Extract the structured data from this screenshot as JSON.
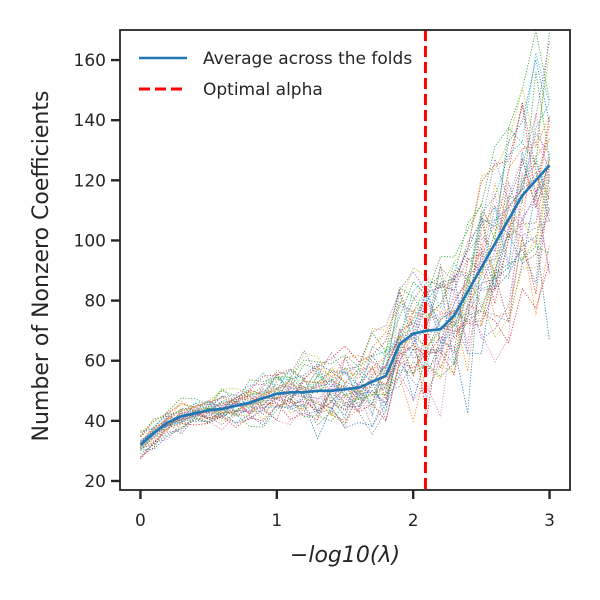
{
  "chart_data": {
    "type": "line",
    "xlabel": "−log10(λ)",
    "ylabel": "Number of Nonzero Coefficients",
    "xlim": [
      -0.15,
      3.15
    ],
    "ylim": [
      17,
      170
    ],
    "x_ticks": [
      0,
      1,
      2,
      3
    ],
    "y_ticks": [
      20,
      40,
      60,
      80,
      100,
      120,
      140,
      160
    ],
    "grid": false,
    "legend_position": "top-left",
    "x": [
      0.0,
      0.1,
      0.2,
      0.3,
      0.4,
      0.5,
      0.6,
      0.7,
      0.8,
      0.9,
      1.0,
      1.1,
      1.2,
      1.3,
      1.4,
      1.5,
      1.6,
      1.7,
      1.8,
      1.9,
      2.0,
      2.1,
      2.2,
      2.3,
      2.4,
      2.5,
      2.6,
      2.7,
      2.8,
      2.9,
      3.0
    ],
    "series": [
      {
        "name": "Average across the folds",
        "color": "#1f77b4",
        "style": "solid",
        "values": [
          32,
          36,
          39.5,
          41.5,
          42.5,
          43.5,
          44,
          45,
          46,
          47.5,
          49,
          49.5,
          49.5,
          50,
          50,
          50.5,
          51,
          53,
          55,
          65.5,
          69,
          70,
          70.5,
          75,
          83,
          91,
          99,
          107,
          115,
          120,
          125
        ]
      }
    ],
    "fold_lines_count": 40,
    "fold_colors": [
      "#1f77b4",
      "#ff7f0e",
      "#2ca02c",
      "#d62728",
      "#9467bd",
      "#8c564b",
      "#e377c2",
      "#7f7f7f",
      "#bcbd22",
      "#17becf"
    ],
    "vertical_line": {
      "name": "Optimal alpha",
      "x": 2.09,
      "color": "#ff0000",
      "style": "dashed"
    }
  }
}
